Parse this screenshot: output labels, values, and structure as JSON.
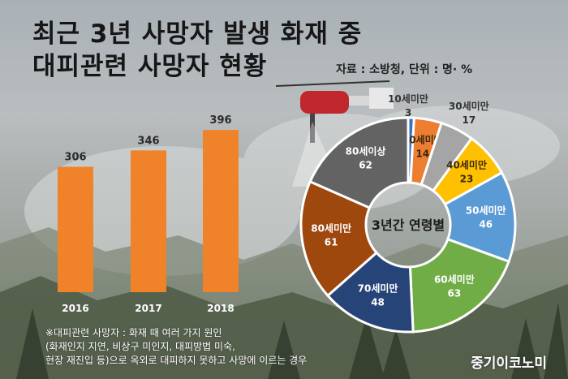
{
  "title": {
    "line1": "최근 3년 사망자 발생 화재 중",
    "line2": "대피관련 사망자 현황"
  },
  "source": "자료 : 소방청, 단위 : 명· %",
  "chart_data": [
    {
      "type": "bar",
      "categories": [
        "2016",
        "2017",
        "2018"
      ],
      "values": [
        306,
        346,
        396
      ],
      "title": "",
      "xlabel": "",
      "ylabel": "",
      "ylim": [
        0,
        420
      ],
      "color": "#f0832a"
    },
    {
      "type": "pie",
      "center_label": "3년간 연령별",
      "categories": [
        "10세미만",
        "20세미만",
        "30세미만",
        "40세미만",
        "50세미만",
        "60세미만",
        "70세미만",
        "80세미만",
        "80세이상"
      ],
      "values": [
        3,
        14,
        17,
        23,
        46,
        63,
        48,
        61,
        62
      ],
      "colors": [
        "#3a6fc0",
        "#ed7d31",
        "#a5a5a5",
        "#ffc000",
        "#5b9bd5",
        "#70ad47",
        "#264478",
        "#9e480e",
        "#636363"
      ]
    }
  ],
  "footnote": [
    "※대피관련 사망자 : 화재 때 여러 가지 원인",
    "(화재인지 지연, 비상구 미인지, 대피방법 미숙,",
    "현장 재진입 등)으로 옥외로 대피하지 못하고 사망에 이르는 경우"
  ],
  "brand": "중기이코노미"
}
